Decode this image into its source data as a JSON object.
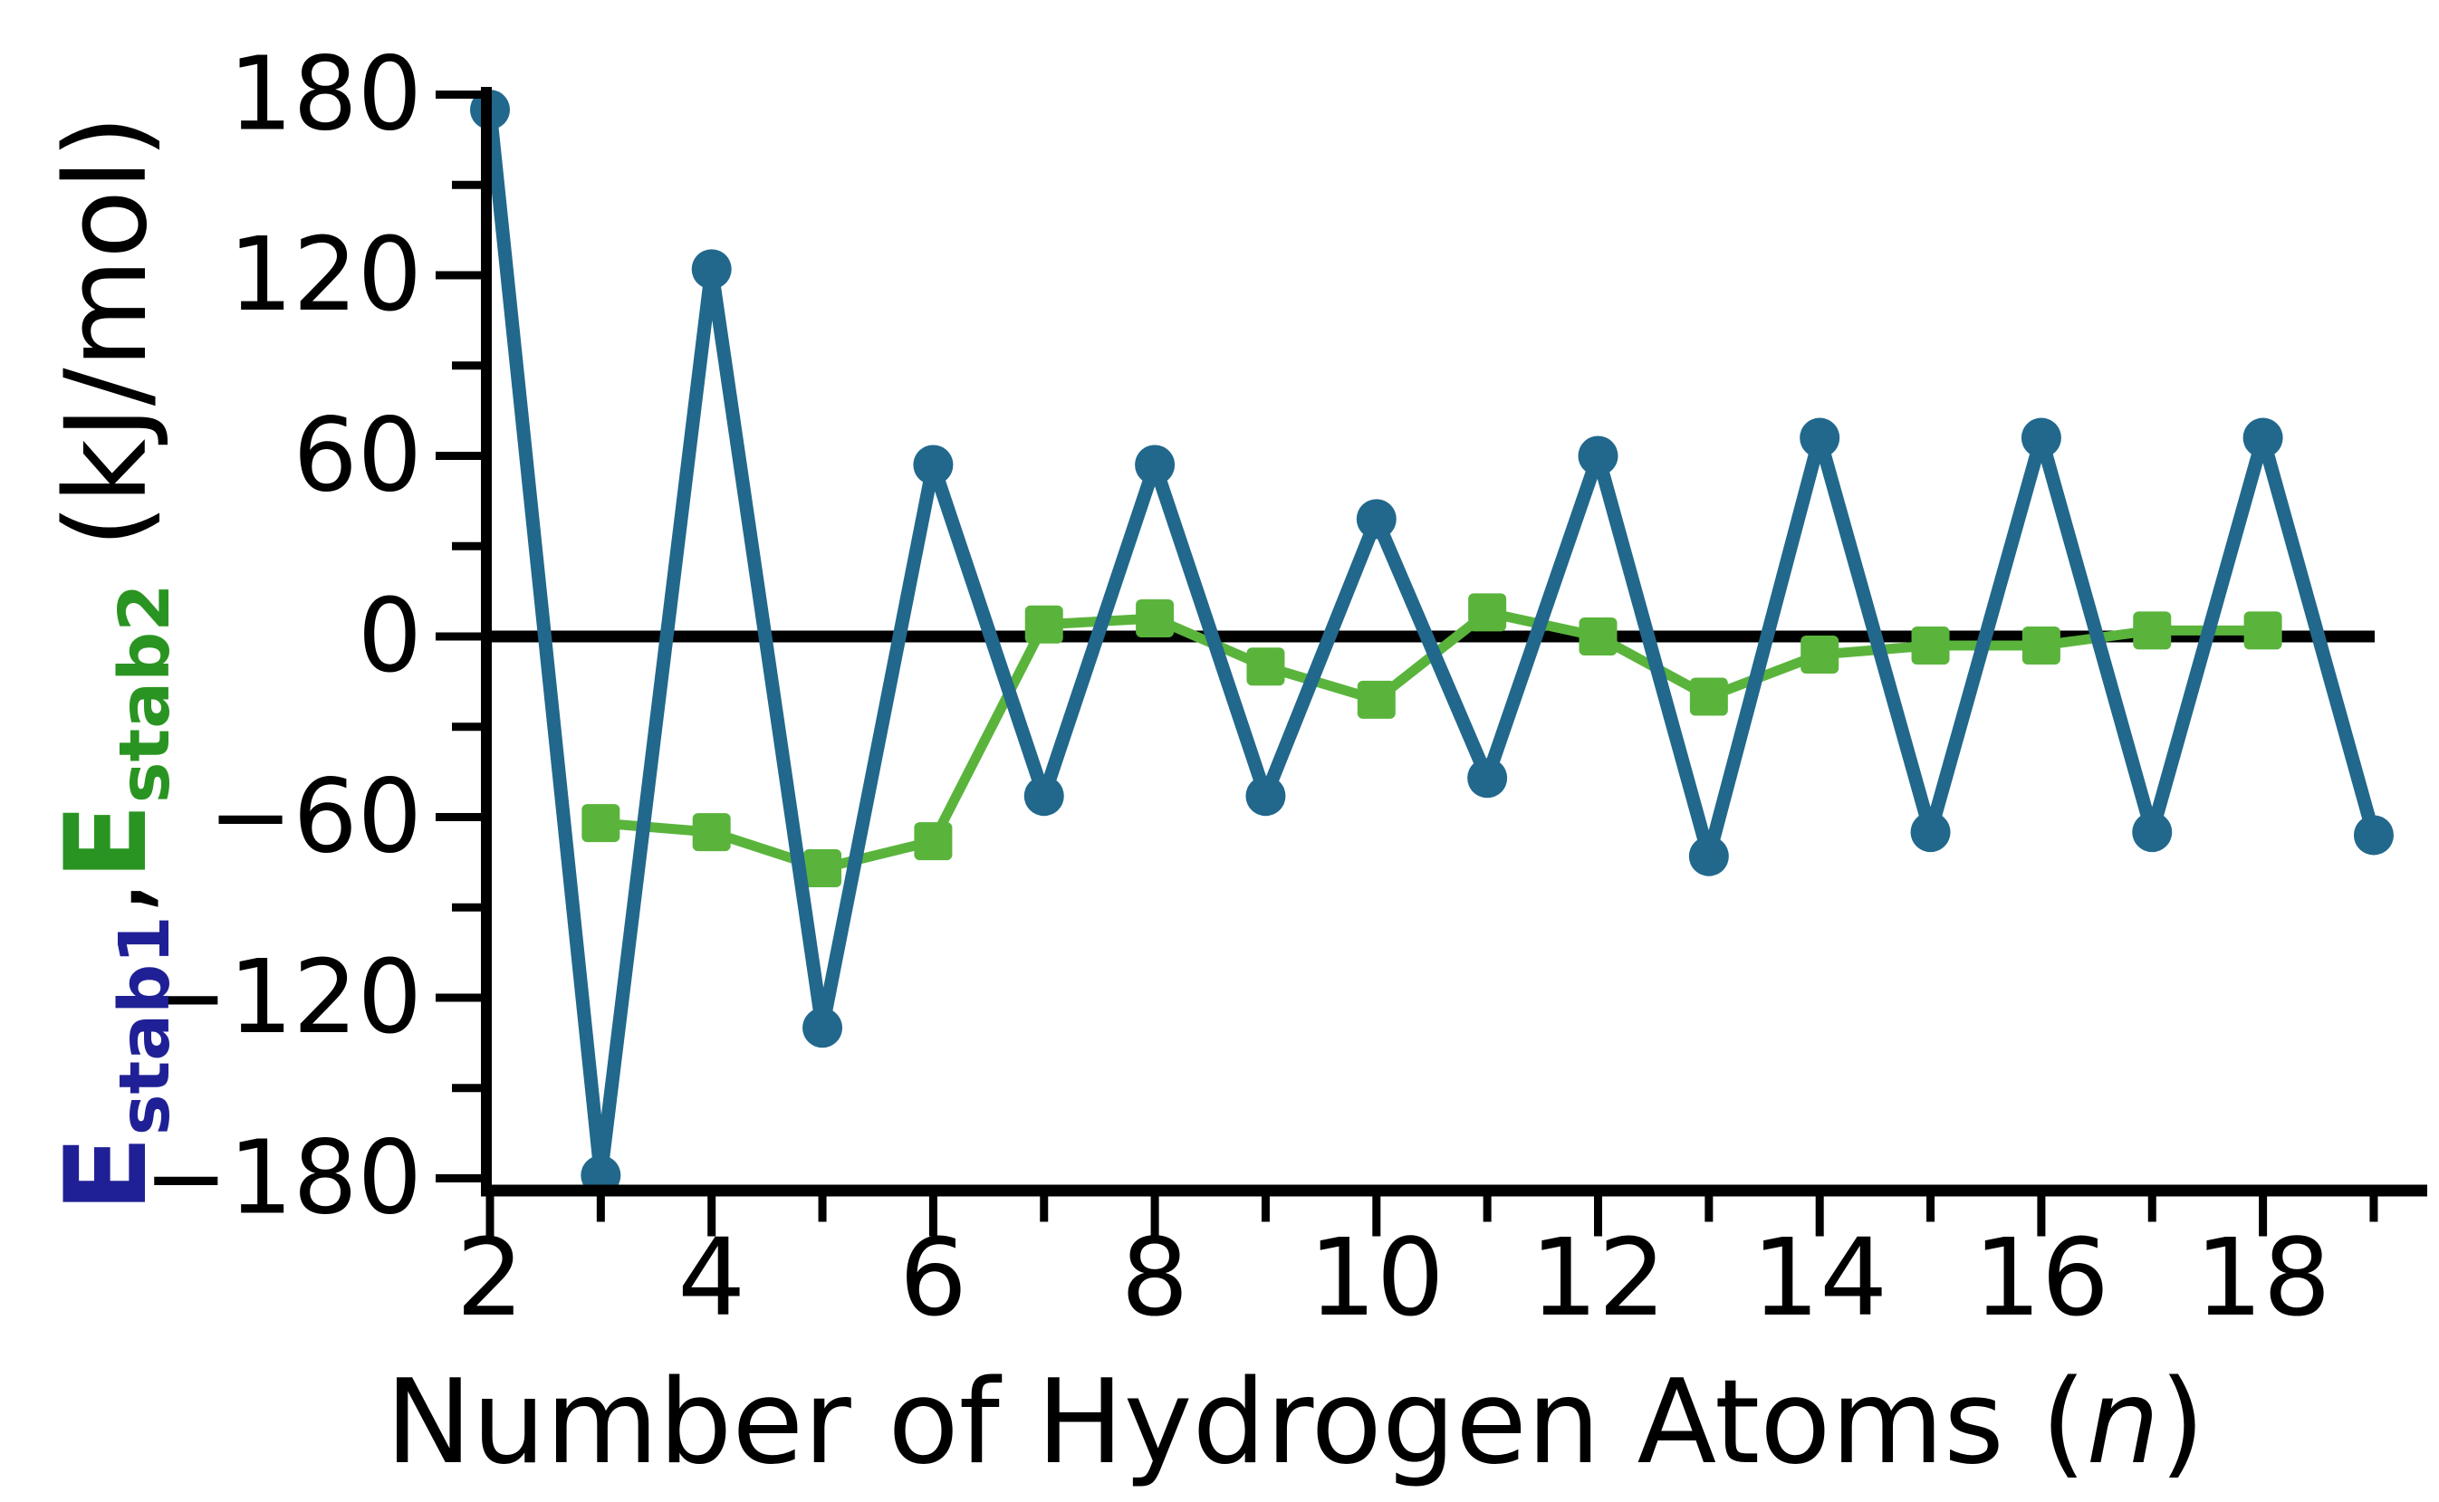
{
  "chart_data": {
    "type": "line",
    "title": "",
    "xlabel_parts": {
      "prefix": "Number of Hydrogen Atoms (",
      "variable": "n",
      "suffix": ")"
    },
    "ylabel_parts": {
      "e1": "E",
      "e1_sub": "stab1",
      "separator": ",",
      "e2": "E",
      "e2_sub": "stab2",
      "units": " (kJ/mol)"
    },
    "xlabel_plain": "Number of Hydrogen Atoms (n)",
    "ylabel_plain": "Estab1,Estab2 (kJ/mol)",
    "xlim": [
      1.8,
      19.6
    ],
    "ylim": [
      -192,
      184
    ],
    "xticks_major": [
      2,
      4,
      6,
      8,
      10,
      12,
      14,
      16,
      18
    ],
    "xtick_labels": [
      "2",
      "4",
      "6",
      "8",
      "10",
      "12",
      "14",
      "16",
      "18"
    ],
    "xticks_minor": [
      3,
      5,
      7,
      9,
      11,
      13,
      15,
      17,
      19
    ],
    "yticks_major": [
      180,
      120,
      60,
      0,
      -60,
      -120,
      -180
    ],
    "ytick_labels": [
      "180",
      "120",
      "60",
      "0",
      "−60",
      "−120",
      "−180"
    ],
    "yticks_minor": [
      150,
      90,
      30,
      -30,
      -90,
      -150
    ],
    "grid": false,
    "zero_line": true,
    "series": [
      {
        "name": "Estab1",
        "label_color": "#202096",
        "color": "#21688c",
        "marker": "circle",
        "x": [
          2,
          3,
          4,
          5,
          6,
          7,
          8,
          9,
          10,
          11,
          12,
          13,
          14,
          15,
          16,
          17,
          18,
          19
        ],
        "values": [
          175,
          -179,
          122,
          -130,
          57,
          -53,
          57,
          -53,
          39,
          -47,
          60,
          -73,
          66,
          -65,
          66,
          -65,
          66,
          -66
        ]
      },
      {
        "name": "Estab2",
        "label_color": "#2a9422",
        "color": "#5ab43c",
        "marker": "square",
        "x": [
          3,
          4,
          5,
          6,
          7,
          8,
          9,
          10,
          11,
          12,
          13,
          14,
          15,
          16,
          17,
          18
        ],
        "values": [
          -62,
          -65,
          -77,
          -68,
          4,
          6,
          -10,
          -21,
          8,
          0,
          -20,
          -6,
          -3,
          -3,
          2,
          2
        ]
      }
    ],
    "units": "kJ/mol"
  },
  "colors": {
    "background": "#ffffff",
    "axis": "#000000",
    "estab1_line": "#21688c",
    "estab2_line": "#5ab43c",
    "ylabel_estab1": "#202096",
    "ylabel_estab2": "#2a9422"
  }
}
